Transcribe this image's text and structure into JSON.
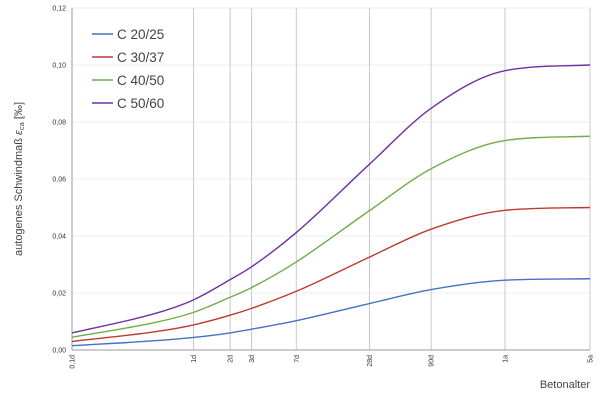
{
  "chart_data": {
    "type": "line",
    "ylabel_main": "autogenes Schwindmaß ",
    "ylabel_symbol": "ε",
    "ylabel_sub": "ca",
    "ylabel_unit": " [‰]",
    "xlabel": "Betonalter",
    "ylim": [
      0,
      0.12
    ],
    "y_ticks": [
      "0,00",
      "0,02",
      "0,04",
      "0,06",
      "0,08",
      "0,10",
      "0,12"
    ],
    "y_tick_values": [
      0,
      0.02,
      0.04,
      0.06,
      0.08,
      0.1,
      0.12
    ],
    "x_scale": "log",
    "x_unit": "days",
    "x_ticks": [
      "0,1d",
      "1d",
      "2d",
      "3d",
      "7d",
      "28d",
      "90d",
      "1a",
      "5a"
    ],
    "x_tick_values": [
      0.1,
      1,
      2,
      3,
      7,
      28,
      90,
      365,
      1825
    ],
    "grid": "vertical lines at x ticks",
    "legend_position": "top-left",
    "series": [
      {
        "name": "C 20/25",
        "color": "#4472C4",
        "x": [
          0.1,
          0.5,
          1,
          2,
          3,
          7,
          28,
          90,
          365,
          1825
        ],
        "y": [
          0.0015,
          0.0033,
          0.0044,
          0.006,
          0.0073,
          0.0103,
          0.0163,
          0.0212,
          0.0245,
          0.025
        ]
      },
      {
        "name": "C 30/37",
        "color": "#C0392B",
        "x": [
          0.1,
          0.5,
          1,
          2,
          3,
          7,
          28,
          90,
          365,
          1825
        ],
        "y": [
          0.003,
          0.0065,
          0.0088,
          0.0122,
          0.0146,
          0.0206,
          0.0326,
          0.0424,
          0.049,
          0.05
        ]
      },
      {
        "name": "C 40/50",
        "color": "#70AD47",
        "x": [
          0.1,
          0.5,
          1,
          2,
          3,
          7,
          28,
          90,
          365,
          1825
        ],
        "y": [
          0.0045,
          0.0098,
          0.0132,
          0.0185,
          0.0219,
          0.0309,
          0.0489,
          0.0636,
          0.0735,
          0.075
        ]
      },
      {
        "name": "C 50/60",
        "color": "#7030A0",
        "x": [
          0.1,
          0.5,
          1,
          2,
          3,
          7,
          28,
          90,
          365,
          1825
        ],
        "y": [
          0.006,
          0.013,
          0.0176,
          0.0247,
          0.0292,
          0.0412,
          0.0652,
          0.0848,
          0.098,
          0.1
        ]
      }
    ]
  }
}
